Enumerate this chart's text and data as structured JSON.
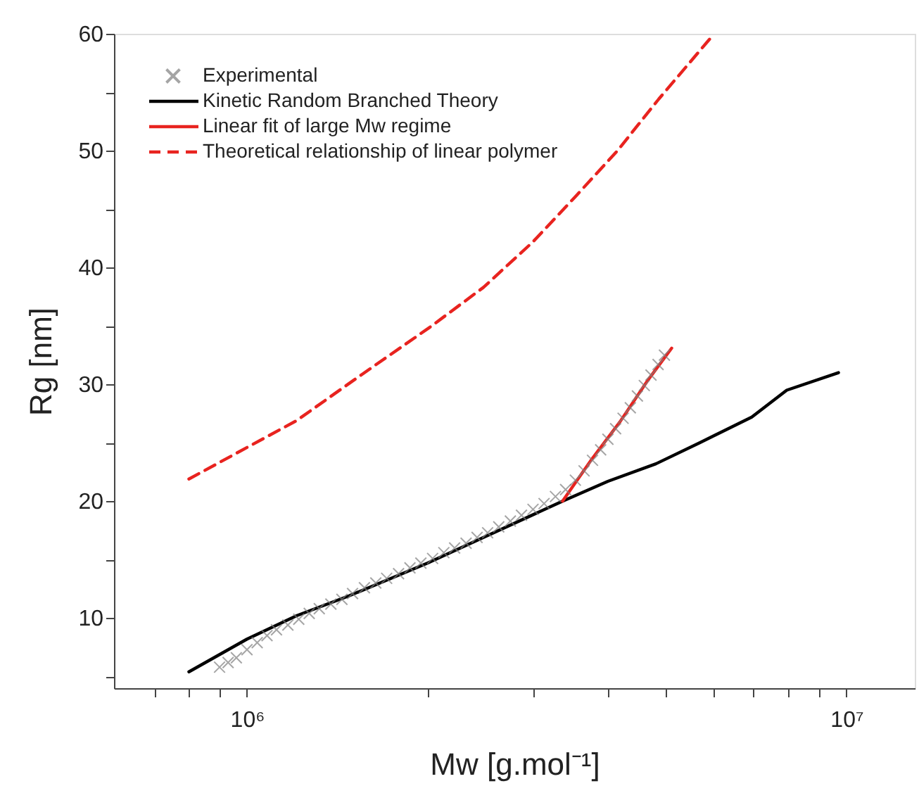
{
  "chart_data": {
    "type": "line",
    "xlabel": "Mw [g.mol⁻¹]",
    "ylabel": "Rg [nm]",
    "log": "x",
    "xlim": [
      600000,
      13000000
    ],
    "xticks": [
      {
        "value": 700000,
        "label": null
      },
      {
        "value": 800000,
        "label": null
      },
      {
        "value": 900000,
        "label": null
      },
      {
        "value": 1000000,
        "label": "10⁶"
      },
      {
        "value": 2000000,
        "label": null
      },
      {
        "value": 3000000,
        "label": null
      },
      {
        "value": 4000000,
        "label": null
      },
      {
        "value": 5000000,
        "label": null
      },
      {
        "value": 6000000,
        "label": null
      },
      {
        "value": 7000000,
        "label": null
      },
      {
        "value": 8000000,
        "label": null
      },
      {
        "value": 9000000,
        "label": null
      },
      {
        "value": 10000000,
        "label": "10⁷"
      }
    ],
    "ylim": [
      4,
      60
    ],
    "yticks": [
      {
        "value": 5,
        "label": null
      },
      10,
      {
        "value": 15,
        "label": null
      },
      20,
      {
        "value": 25,
        "label": null
      },
      30,
      {
        "value": 35,
        "label": null
      },
      40,
      {
        "value": 45,
        "label": null
      },
      50,
      {
        "value": 55,
        "label": null
      },
      60
    ],
    "grid": false,
    "legend": "top left",
    "series": [
      {
        "name": "Experimental",
        "type": "scatter",
        "marker": "cross",
        "color": "#808080",
        "x": [
          900000,
          930000,
          960000,
          1000000,
          1040000,
          1080000,
          1120000,
          1170000,
          1220000,
          1270000,
          1320000,
          1380000,
          1440000,
          1500000,
          1570000,
          1640000,
          1710000,
          1790000,
          1870000,
          1950000,
          2040000,
          2130000,
          2220000,
          2320000,
          2420000,
          2520000,
          2630000,
          2750000,
          2870000,
          3000000,
          3130000,
          3270000,
          3400000,
          3530000,
          3650000,
          3770000,
          3890000,
          4000000,
          4120000,
          4240000,
          4360000,
          4480000,
          4600000,
          4720000,
          4850000,
          4970000
        ],
        "values": [
          5.8,
          6.2,
          6.6,
          7.3,
          7.9,
          8.5,
          9.0,
          9.4,
          9.9,
          10.4,
          10.8,
          11.2,
          11.6,
          12.1,
          12.6,
          13.0,
          13.4,
          13.8,
          14.3,
          14.7,
          15.1,
          15.6,
          16.0,
          16.4,
          16.9,
          17.3,
          17.8,
          18.3,
          18.8,
          19.3,
          19.8,
          20.4,
          21.0,
          21.8,
          22.6,
          23.5,
          24.4,
          25.3,
          26.2,
          27.1,
          28.0,
          29.0,
          29.9,
          30.8,
          31.7,
          32.5
        ]
      },
      {
        "name": "Kinetic Random Branched Theory",
        "type": "line",
        "line_style": "solid",
        "color": "#000000",
        "x": [
          800000,
          1000000,
          1210000,
          1480000,
          2000000,
          2480000,
          3360000,
          4000000,
          4810000,
          5690000,
          6950000,
          7950000,
          9700000
        ],
        "values": [
          5.4,
          8.2,
          10.2,
          11.9,
          14.7,
          16.9,
          20.0,
          21.7,
          23.2,
          25.0,
          27.2,
          29.5,
          31.0
        ]
      },
      {
        "name": "Linear fit of large Mw regime",
        "type": "line",
        "line_style": "solid",
        "color": "#e8231f",
        "x": [
          3360000,
          3760000,
          4190000,
          4670000,
          5110000
        ],
        "values": [
          20.0,
          23.6,
          26.8,
          30.4,
          33.1
        ]
      },
      {
        "name": "Theoretical relationship of linear polymer",
        "type": "line",
        "line_style": "dashed",
        "color": "#e8231f",
        "x": [
          800000,
          1210000,
          1550000,
          2020000,
          2480000,
          3000000,
          3550000,
          4150000,
          4860000,
          5970000
        ],
        "values": [
          21.9,
          26.9,
          30.8,
          34.9,
          38.3,
          42.2,
          46.2,
          50.0,
          54.4,
          59.8
        ]
      }
    ]
  }
}
